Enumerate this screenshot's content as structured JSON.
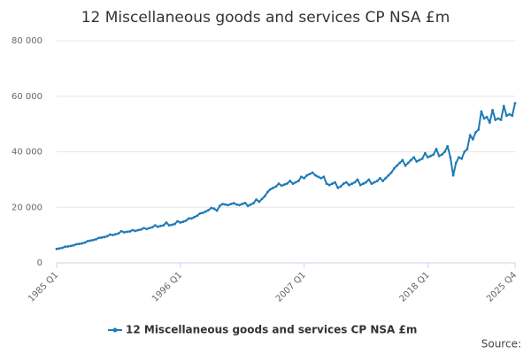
{
  "chart_data": {
    "type": "line",
    "title": "12 Miscellaneous goods and services CP NSA £m",
    "source": "Source:",
    "categories": [
      "1985 Q1",
      null,
      null,
      null,
      null,
      null,
      null,
      null,
      null,
      null,
      null,
      null,
      null,
      null,
      null,
      null,
      null,
      null,
      null,
      null,
      null,
      null,
      null,
      null,
      null,
      null,
      null,
      null,
      null,
      null,
      null,
      null,
      null,
      null,
      null,
      null,
      null,
      null,
      null,
      null,
      null,
      null,
      null,
      null,
      "1996 Q1",
      null,
      null,
      null,
      null,
      null,
      null,
      null,
      null,
      null,
      null,
      null,
      null,
      null,
      null,
      null,
      null,
      null,
      null,
      null,
      null,
      null,
      null,
      null,
      null,
      null,
      null,
      null,
      null,
      null,
      null,
      null,
      null,
      null,
      null,
      null,
      null,
      null,
      null,
      null,
      null,
      null,
      null,
      null,
      "2007 Q1",
      null,
      null,
      null,
      null,
      null,
      null,
      null,
      null,
      null,
      null,
      null,
      null,
      null,
      null,
      null,
      null,
      null,
      null,
      null,
      null,
      null,
      null,
      null,
      null,
      null,
      null,
      null,
      null,
      null,
      null,
      null,
      null,
      null,
      null,
      null,
      null,
      null,
      null,
      null,
      null,
      null,
      null,
      null,
      "2018 Q1",
      null,
      null,
      null,
      null,
      null,
      null,
      null,
      null,
      null,
      null,
      null,
      null,
      null,
      null,
      null,
      null,
      null,
      null,
      null,
      null,
      null,
      null,
      null,
      null,
      null,
      null,
      null,
      null,
      null,
      null,
      "2025 Q4"
    ],
    "series": [
      {
        "name": "12 Miscellaneous goods and services CP NSA £m",
        "color": "#1f7bb6",
        "values": [
          5000,
          5200,
          5400,
          5800,
          5900,
          6100,
          6300,
          6700,
          6800,
          7000,
          7300,
          7800,
          8000,
          8200,
          8500,
          9000,
          9100,
          9300,
          9600,
          10200,
          10000,
          10300,
          10600,
          11400,
          11000,
          11200,
          11300,
          11800,
          11500,
          11800,
          12000,
          12500,
          12200,
          12500,
          12800,
          13500,
          13000,
          13300,
          13500,
          14500,
          13500,
          13700,
          14000,
          15000,
          14500,
          14800,
          15200,
          16000,
          16000,
          16500,
          17000,
          17800,
          18000,
          18500,
          19000,
          19800,
          19500,
          18800,
          20500,
          21200,
          21000,
          20800,
          21200,
          21500,
          21000,
          20800,
          21200,
          21600,
          20500,
          21000,
          21500,
          22800,
          22000,
          23000,
          24000,
          25500,
          26500,
          27000,
          27500,
          28500,
          27800,
          28200,
          28600,
          29500,
          28500,
          29000,
          29500,
          31000,
          30500,
          31500,
          32000,
          32500,
          31500,
          31000,
          30500,
          31000,
          28500,
          28000,
          28500,
          29000,
          27000,
          27500,
          28500,
          29000,
          28000,
          28500,
          29000,
          30000,
          28000,
          28500,
          29000,
          30000,
          28500,
          29000,
          29500,
          30500,
          29500,
          30500,
          31500,
          32500,
          34000,
          35000,
          36000,
          37000,
          35000,
          36000,
          37000,
          38000,
          36500,
          37000,
          37500,
          39500,
          38000,
          38500,
          39000,
          41000,
          38500,
          39000,
          40000,
          42000,
          38000,
          31500,
          36000,
          38000,
          37500,
          40000,
          41000,
          46000,
          44500,
          47000,
          48000,
          54500,
          52000,
          52500,
          50500,
          55000,
          51500,
          52000,
          51500,
          56500,
          53000,
          53500,
          53000,
          57500
        ]
      }
    ],
    "ylim": [
      0,
      80000
    ],
    "yticks": [
      0,
      {
        "value": 20000,
        "label": "20 000"
      },
      {
        "value": 40000,
        "label": "40 000"
      },
      {
        "value": 60000,
        "label": "60 000"
      },
      {
        "value": 80000,
        "label": "80 000"
      }
    ],
    "grid": true
  }
}
